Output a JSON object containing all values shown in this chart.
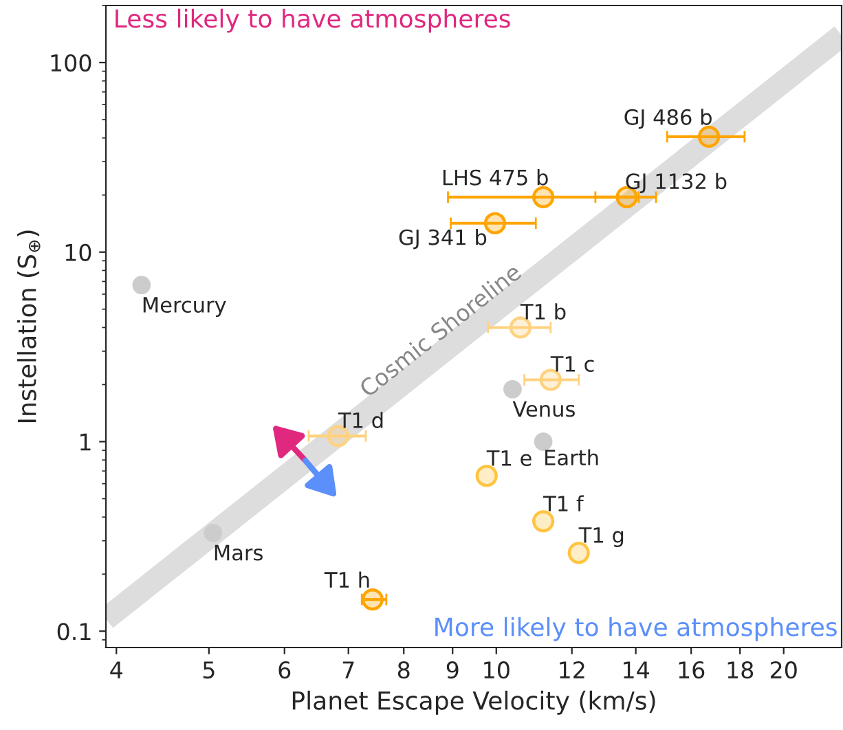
{
  "chart_data": {
    "type": "scatter",
    "xlabel": "Planet Escape Velocity (km/s)",
    "ylabel": "Instellation (S$_{⊕}$)",
    "log": "xy",
    "grid": false,
    "marker": "circle",
    "xlim": [
      3.9,
      23
    ],
    "ylim": [
      0.082,
      200
    ],
    "xticks": [
      4,
      5,
      6,
      7,
      8,
      9,
      10,
      12,
      14,
      16,
      18,
      20
    ],
    "yticks": [
      {
        "value": 0.1,
        "label": "0.1"
      },
      {
        "value": 1,
        "label": "1"
      },
      {
        "value": 10,
        "label": "10"
      },
      {
        "value": 100,
        "label": "100"
      }
    ],
    "annotations": [
      "Cosmic Shoreline",
      "Less likely to have atmospheres",
      "More likely to have atmospheres"
    ],
    "series": [
      {
        "type": "line",
        "color": "#dddddd",
        "x": [
          3.9,
          23
        ],
        "values": [
          0.116,
          139
        ],
        "marker": "none"
      },
      {
        "name": "Mercury",
        "color": "#cccccc",
        "x": [
          4.25
        ],
        "values": [
          6.7
        ]
      },
      {
        "name": "Venus",
        "color": "#cccccc",
        "x": [
          10.4
        ],
        "values": [
          1.89
        ]
      },
      {
        "name": "Earth",
        "color": "#cccccc",
        "x": [
          11.2
        ],
        "values": [
          1.0
        ]
      },
      {
        "name": "Mars",
        "color": "#cccccc",
        "x": [
          5.05
        ],
        "values": [
          0.33
        ]
      },
      {
        "name": "GJ 486 b",
        "color": "#ffa500",
        "x": [
          16.7
        ],
        "values": [
          40.6
        ],
        "xerrors": [
          [
            15.1,
            18.2
          ]
        ]
      },
      {
        "name": "LHS 475 b",
        "color": "#ffa500",
        "x": [
          11.2
        ],
        "values": [
          19.5
        ],
        "xerrors": [
          [
            8.9,
            14.1
          ]
        ]
      },
      {
        "name": "GJ 1132 b",
        "color": "#ffa500",
        "x": [
          13.7
        ],
        "values": [
          19.5
        ],
        "xerrors": [
          [
            12.7,
            14.7
          ]
        ]
      },
      {
        "name": "GJ 341 b",
        "color": "#ffa500",
        "x": [
          9.97
        ],
        "values": [
          14.2
        ],
        "xerrors": [
          [
            8.96,
            11.0
          ]
        ]
      },
      {
        "name": "T1 b",
        "color": "#ffd27f",
        "x": [
          10.6
        ],
        "values": [
          4.0
        ],
        "xerrors": [
          [
            9.8,
            11.4
          ]
        ]
      },
      {
        "name": "T1 c",
        "color": "#ffd27f",
        "x": [
          11.4
        ],
        "values": [
          2.12
        ],
        "xerrors": [
          [
            10.7,
            12.2
          ]
        ]
      },
      {
        "name": "T1 d",
        "color": "#ffd27f",
        "x": [
          6.83
        ],
        "values": [
          1.07
        ],
        "xerrors": [
          [
            6.36,
            7.3
          ]
        ]
      },
      {
        "name": "T1 e",
        "color": "#ffc440",
        "x": [
          9.77
        ],
        "values": [
          0.66
        ]
      },
      {
        "name": "T1 f",
        "color": "#ffc440",
        "x": [
          11.2
        ],
        "values": [
          0.38
        ]
      },
      {
        "name": "T1 g",
        "color": "#ffc440",
        "x": [
          12.2
        ],
        "values": [
          0.259
        ]
      },
      {
        "name": "T1 h",
        "color": "#ffa500",
        "x": [
          7.42
        ],
        "values": [
          0.147
        ],
        "xerrors": [
          [
            7.23,
            7.67
          ]
        ]
      }
    ]
  }
}
